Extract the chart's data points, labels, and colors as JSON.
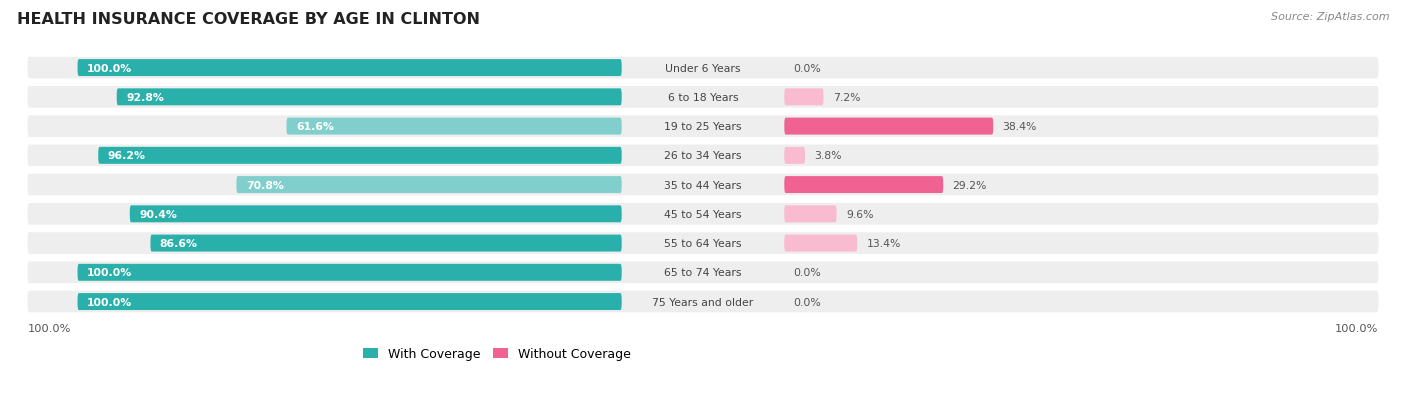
{
  "title": "HEALTH INSURANCE COVERAGE BY AGE IN CLINTON",
  "source": "Source: ZipAtlas.com",
  "categories": [
    "Under 6 Years",
    "6 to 18 Years",
    "19 to 25 Years",
    "26 to 34 Years",
    "35 to 44 Years",
    "45 to 54 Years",
    "55 to 64 Years",
    "65 to 74 Years",
    "75 Years and older"
  ],
  "with_coverage": [
    100.0,
    92.8,
    61.6,
    96.2,
    70.8,
    90.4,
    86.6,
    100.0,
    100.0
  ],
  "without_coverage": [
    0.0,
    7.2,
    38.4,
    3.8,
    29.2,
    9.6,
    13.4,
    0.0,
    0.0
  ],
  "color_with_strong": "#2ab0aa",
  "color_with_light": "#80cfcc",
  "color_without_strong": "#f06292",
  "color_without_light": "#f8bbd0",
  "row_bg": "#eeeeee",
  "title_color": "#222222",
  "source_color": "#888888",
  "label_color_dark": "#555555",
  "threshold_with": 85,
  "threshold_without": 20
}
